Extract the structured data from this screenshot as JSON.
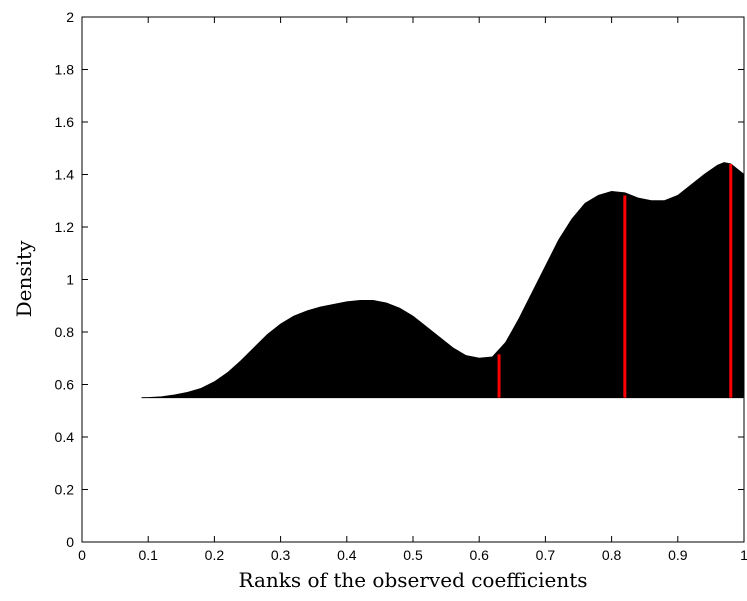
{
  "chart_data": {
    "type": "area",
    "xlabel": "Ranks of the observed coefficients",
    "ylabel": "Density",
    "xlim": [
      0,
      1
    ],
    "ylim": [
      0,
      2
    ],
    "xticks": [
      "0",
      "0.1",
      "0.2",
      "0.3",
      "0.4",
      "0.5",
      "0.6",
      "0.7",
      "0.8",
      "0.9",
      "1"
    ],
    "yticks": [
      "0",
      "0.2",
      "0.4",
      "0.6",
      "0.8",
      "1",
      "1.2",
      "1.4",
      "1.6",
      "1.8",
      "2"
    ],
    "baseline": 0.55,
    "grid": false,
    "fill_color": "#000000",
    "marker_color": "#ff0000",
    "density_points": [
      [
        0.09,
        0.55
      ],
      [
        0.1,
        0.55
      ],
      [
        0.12,
        0.553
      ],
      [
        0.14,
        0.56
      ],
      [
        0.16,
        0.57
      ],
      [
        0.18,
        0.585
      ],
      [
        0.2,
        0.61
      ],
      [
        0.22,
        0.645
      ],
      [
        0.24,
        0.69
      ],
      [
        0.26,
        0.74
      ],
      [
        0.28,
        0.79
      ],
      [
        0.3,
        0.83
      ],
      [
        0.32,
        0.86
      ],
      [
        0.34,
        0.88
      ],
      [
        0.36,
        0.895
      ],
      [
        0.38,
        0.905
      ],
      [
        0.4,
        0.915
      ],
      [
        0.42,
        0.92
      ],
      [
        0.44,
        0.92
      ],
      [
        0.46,
        0.91
      ],
      [
        0.48,
        0.89
      ],
      [
        0.5,
        0.86
      ],
      [
        0.52,
        0.82
      ],
      [
        0.54,
        0.78
      ],
      [
        0.56,
        0.74
      ],
      [
        0.58,
        0.71
      ],
      [
        0.6,
        0.7
      ],
      [
        0.62,
        0.705
      ],
      [
        0.64,
        0.76
      ],
      [
        0.66,
        0.85
      ],
      [
        0.68,
        0.95
      ],
      [
        0.7,
        1.05
      ],
      [
        0.72,
        1.15
      ],
      [
        0.74,
        1.23
      ],
      [
        0.76,
        1.29
      ],
      [
        0.78,
        1.32
      ],
      [
        0.8,
        1.335
      ],
      [
        0.82,
        1.33
      ],
      [
        0.84,
        1.31
      ],
      [
        0.86,
        1.3
      ],
      [
        0.88,
        1.3
      ],
      [
        0.9,
        1.32
      ],
      [
        0.92,
        1.36
      ],
      [
        0.94,
        1.4
      ],
      [
        0.96,
        1.435
      ],
      [
        0.97,
        1.445
      ],
      [
        0.98,
        1.44
      ],
      [
        0.99,
        1.42
      ],
      [
        1.0,
        1.4
      ]
    ],
    "markers": [
      {
        "x": 0.63,
        "y": 0.715
      },
      {
        "x": 0.82,
        "y": 1.32
      },
      {
        "x": 0.98,
        "y": 1.44
      }
    ]
  }
}
